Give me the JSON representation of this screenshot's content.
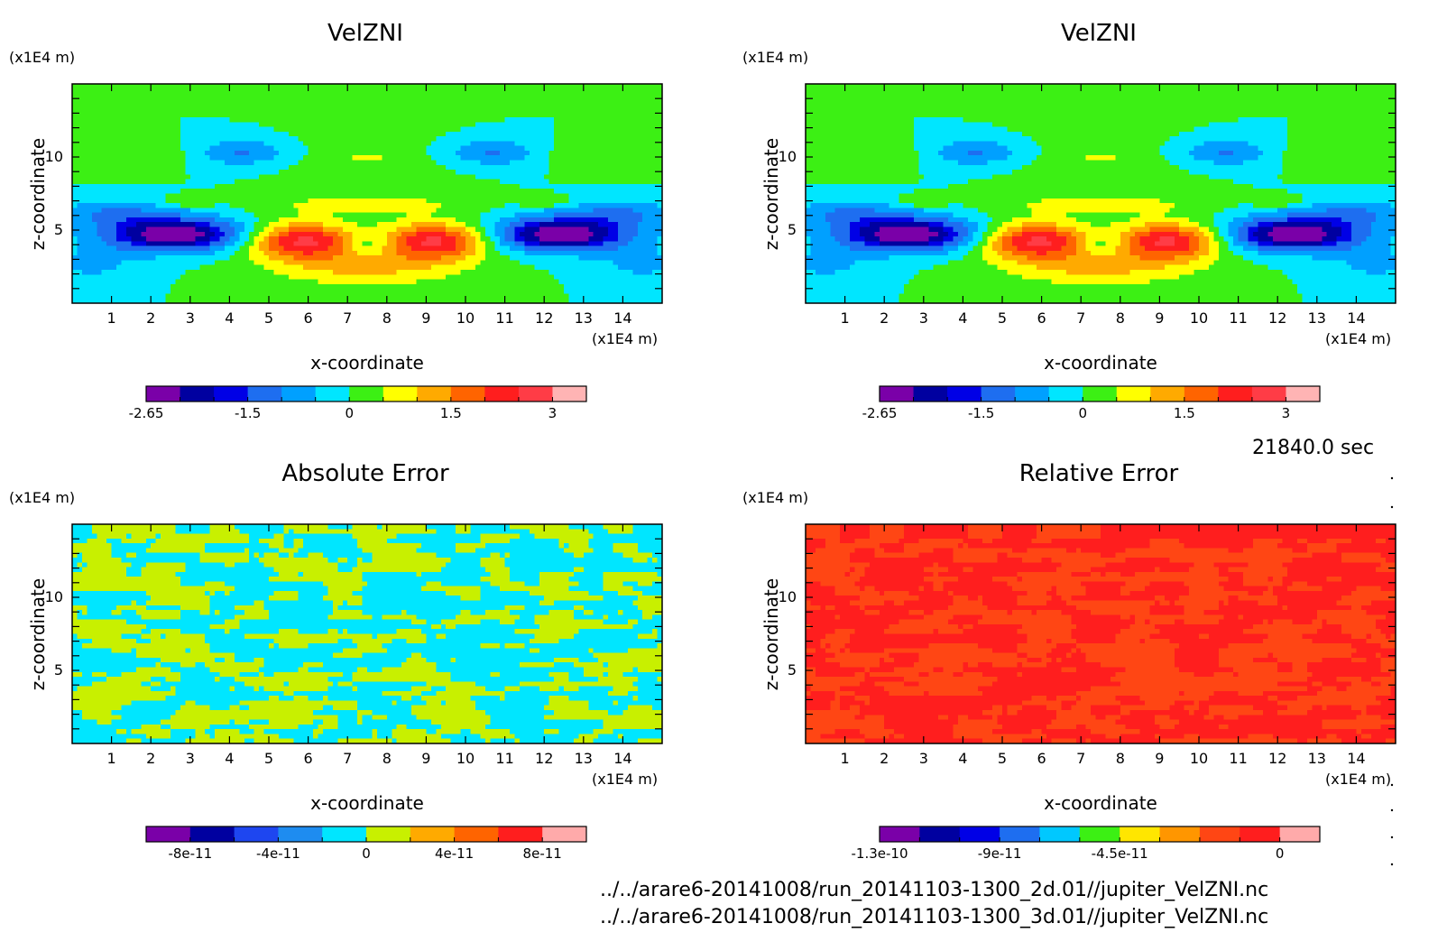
{
  "chart_data": [
    {
      "type": "heatmap",
      "id": "p1",
      "title": "VelZNI",
      "xlabel": "x-coordinate",
      "ylabel": "z-coordinate",
      "x_unit": "(x1E4 m)",
      "y_unit": "(x1E4 m)",
      "x_ticks": [
        "1",
        "2",
        "3",
        "4",
        "5",
        "6",
        "7",
        "8",
        "9",
        "10",
        "11",
        "12",
        "13",
        "14"
      ],
      "y_ticks": [
        "5",
        "10"
      ],
      "xlim": [
        0,
        15
      ],
      "ylim": [
        0,
        15
      ],
      "field": "velz",
      "levels": [
        -2.65,
        -2.25,
        -1.85,
        -1.5,
        -1.0,
        -0.5,
        0,
        0.5,
        1.0,
        1.5,
        2.0,
        2.5,
        3
      ],
      "colorbar_colors": [
        "#7a00a8",
        "#0000a0",
        "#0000e6",
        "#1e6ef0",
        "#00a0ff",
        "#00e6ff",
        "#3cf014",
        "#ffff00",
        "#ffaa00",
        "#ff6400",
        "#ff1e1e",
        "#ff3c46",
        "#ffb4b4"
      ],
      "colorbar_labels": [
        "-2.65",
        "-1.5",
        "0",
        "1.5",
        "3"
      ],
      "colorbar_label_positions": [
        0,
        3,
        6,
        9,
        12
      ]
    },
    {
      "type": "heatmap",
      "id": "p2",
      "title": "VelZNI",
      "xlabel": "x-coordinate",
      "ylabel": "z-coordinate",
      "x_unit": "(x1E4 m)",
      "y_unit": "(x1E4 m)",
      "x_ticks": [
        "1",
        "2",
        "3",
        "4",
        "5",
        "6",
        "7",
        "8",
        "9",
        "10",
        "11",
        "12",
        "13",
        "14"
      ],
      "y_ticks": [
        "5",
        "10"
      ],
      "xlim": [
        0,
        15
      ],
      "ylim": [
        0,
        15
      ],
      "field": "velz",
      "levels": [
        -2.65,
        -2.25,
        -1.85,
        -1.5,
        -1.0,
        -0.5,
        0,
        0.5,
        1.0,
        1.5,
        2.0,
        2.5,
        3
      ],
      "colorbar_colors": [
        "#7a00a8",
        "#0000a0",
        "#0000e6",
        "#1e6ef0",
        "#00a0ff",
        "#00e6ff",
        "#3cf014",
        "#ffff00",
        "#ffaa00",
        "#ff6400",
        "#ff1e1e",
        "#ff3c46",
        "#ffb4b4"
      ],
      "colorbar_labels": [
        "-2.65",
        "-1.5",
        "0",
        "1.5",
        "3"
      ],
      "colorbar_label_positions": [
        0,
        3,
        6,
        9,
        12
      ]
    },
    {
      "type": "heatmap",
      "id": "p3",
      "title": "Absolute Error",
      "xlabel": "x-coordinate",
      "ylabel": "z-coordinate",
      "x_unit": "(x1E4 m)",
      "y_unit": "(x1E4 m)",
      "x_ticks": [
        "1",
        "2",
        "3",
        "4",
        "5",
        "6",
        "7",
        "8",
        "9",
        "10",
        "11",
        "12",
        "13",
        "14"
      ],
      "y_ticks": [
        "5",
        "10"
      ],
      "xlim": [
        0,
        15
      ],
      "ylim": [
        0,
        15
      ],
      "field": "abs",
      "levels": [
        -1e-10,
        -8e-11,
        -6e-11,
        -4e-11,
        -2e-11,
        0,
        2e-11,
        4e-11,
        6e-11,
        8e-11,
        1e-10
      ],
      "colorbar_colors": [
        "#7a00a8",
        "#0000a0",
        "#1e46f0",
        "#1e8cf0",
        "#00e6ff",
        "#c8f000",
        "#ffaa00",
        "#ff6400",
        "#ff1e1e",
        "#ffaaaa"
      ],
      "colorbar_labels": [
        "-8e-11",
        "-4e-11",
        "0",
        "4e-11",
        "8e-11"
      ],
      "colorbar_label_positions": [
        1,
        3,
        5,
        7,
        9
      ]
    },
    {
      "type": "heatmap",
      "id": "p4",
      "title": "Relative Error",
      "xlabel": "x-coordinate",
      "ylabel": "z-coordinate",
      "x_unit": "(x1E4 m)",
      "y_unit": "(x1E4 m)",
      "x_ticks": [
        "1",
        "2",
        "3",
        "4",
        "5",
        "6",
        "7",
        "8",
        "9",
        "10",
        "11",
        "12",
        "13",
        "14"
      ],
      "y_ticks": [
        "5",
        "10"
      ],
      "xlim": [
        0,
        15
      ],
      "ylim": [
        0,
        15
      ],
      "field": "rel",
      "levels": [
        -1.3e-10,
        -1.15e-10,
        -1e-10,
        -9e-11,
        -7.5e-11,
        -6e-11,
        -4.5e-11,
        -3e-11,
        -1.5e-11,
        -5e-12,
        0
      ],
      "colorbar_colors": [
        "#7a00a8",
        "#0000a0",
        "#0000e6",
        "#1e6ef0",
        "#00c8ff",
        "#3cf014",
        "#ffe600",
        "#ff9600",
        "#ff4614",
        "#ff1e1e",
        "#ffaaaa"
      ],
      "colorbar_labels": [
        "-1.3e-10",
        "-9e-11",
        "-4.5e-11",
        "0"
      ],
      "colorbar_label_positions": [
        0,
        3,
        6,
        10
      ]
    }
  ],
  "info": {
    "time": "21840.0 sec",
    "file1": "../../arare6-20141008/run_20141103-1300_2d.01//jupiter_VelZNI.nc",
    "file2": "../../arare6-20141008/run_20141103-1300_3d.01//jupiter_VelZNI.nc"
  }
}
